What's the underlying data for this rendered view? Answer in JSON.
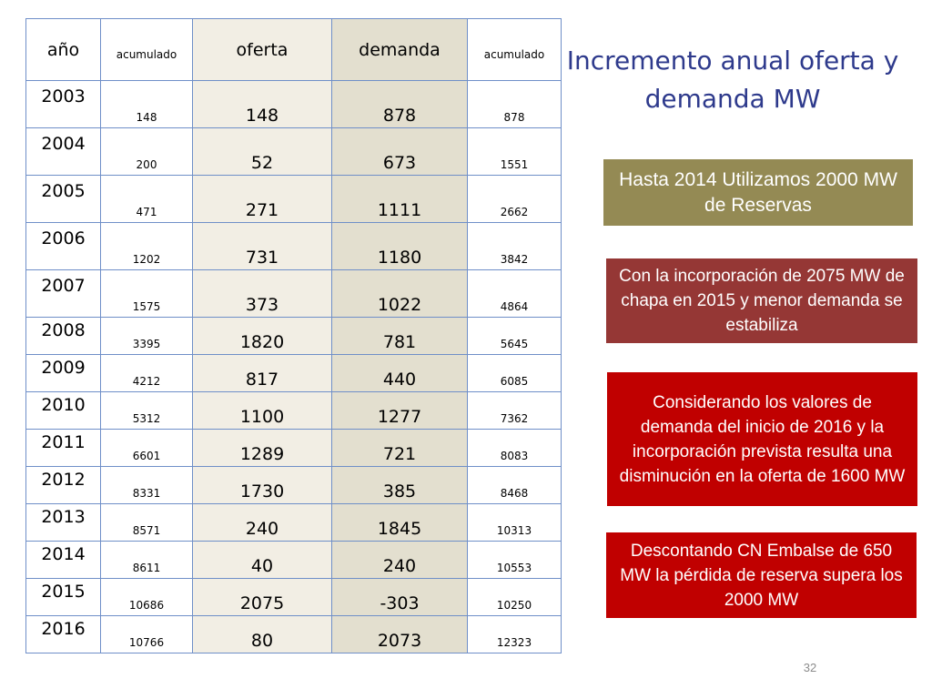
{
  "title": "Incremento anual oferta y demanda MW",
  "table": {
    "headers": [
      "año",
      "acumulado",
      "oferta",
      "demanda",
      "acumulado"
    ],
    "rows": [
      {
        "year": "2003",
        "acumulado_oferta": "148",
        "oferta": "148",
        "demanda": "878",
        "acumulado_demanda": "878"
      },
      {
        "year": "2004",
        "acumulado_oferta": "200",
        "oferta": "52",
        "demanda": "673",
        "acumulado_demanda": "1551"
      },
      {
        "year": "2005",
        "acumulado_oferta": "471",
        "oferta": "271",
        "demanda": "1111",
        "acumulado_demanda": "2662"
      },
      {
        "year": "2006",
        "acumulado_oferta": "1202",
        "oferta": "731",
        "demanda": "1180",
        "acumulado_demanda": "3842"
      },
      {
        "year": "2007",
        "acumulado_oferta": "1575",
        "oferta": "373",
        "demanda": "1022",
        "acumulado_demanda": "4864"
      },
      {
        "year": "2008",
        "acumulado_oferta": "3395",
        "oferta": "1820",
        "demanda": "781",
        "acumulado_demanda": "5645"
      },
      {
        "year": "2009",
        "acumulado_oferta": "4212",
        "oferta": "817",
        "demanda": "440",
        "acumulado_demanda": "6085"
      },
      {
        "year": "2010",
        "acumulado_oferta": "5312",
        "oferta": "1100",
        "demanda": "1277",
        "acumulado_demanda": "7362"
      },
      {
        "year": "2011",
        "acumulado_oferta": "6601",
        "oferta": "1289",
        "demanda": "721",
        "acumulado_demanda": "8083"
      },
      {
        "year": "2012",
        "acumulado_oferta": "8331",
        "oferta": "1730",
        "demanda": "385",
        "acumulado_demanda": "8468"
      },
      {
        "year": "2013",
        "acumulado_oferta": "8571",
        "oferta": "240",
        "demanda": "1845",
        "acumulado_demanda": "10313"
      },
      {
        "year": "2014",
        "acumulado_oferta": "8611",
        "oferta": "40",
        "demanda": "240",
        "acumulado_demanda": "10553"
      },
      {
        "year": "2015",
        "acumulado_oferta": "10686",
        "oferta": "2075",
        "demanda": "-303",
        "acumulado_demanda": "10250"
      },
      {
        "year": "2016",
        "acumulado_oferta": "10766",
        "oferta": "80",
        "demanda": "2073",
        "acumulado_demanda": "12323"
      }
    ]
  },
  "notes": [
    {
      "text": "Hasta 2014 Utilizamos 2000 MW de Reservas",
      "color": "#948a54"
    },
    {
      "text": "Con la incorporación de 2075 MW de chapa  en 2015 y menor demanda  se estabiliza",
      "color": "#953735"
    },
    {
      "text": "Considerando los valores de demanda del inicio de 2016 y la incorporación prevista resulta una disminución  en la oferta de 1600 MW",
      "color": "#c00000"
    },
    {
      "text": "Descontando  CN Embalse de 650 MW la pérdida de reserva supera los 2000 MW",
      "color": "#c00000"
    }
  ],
  "page_number": "32",
  "colors": {
    "title": "#2e3a8c",
    "table_border": "#6f8fc8",
    "oferta_fill": "#f2eee4",
    "demanda_fill": "#e3dfcf"
  }
}
